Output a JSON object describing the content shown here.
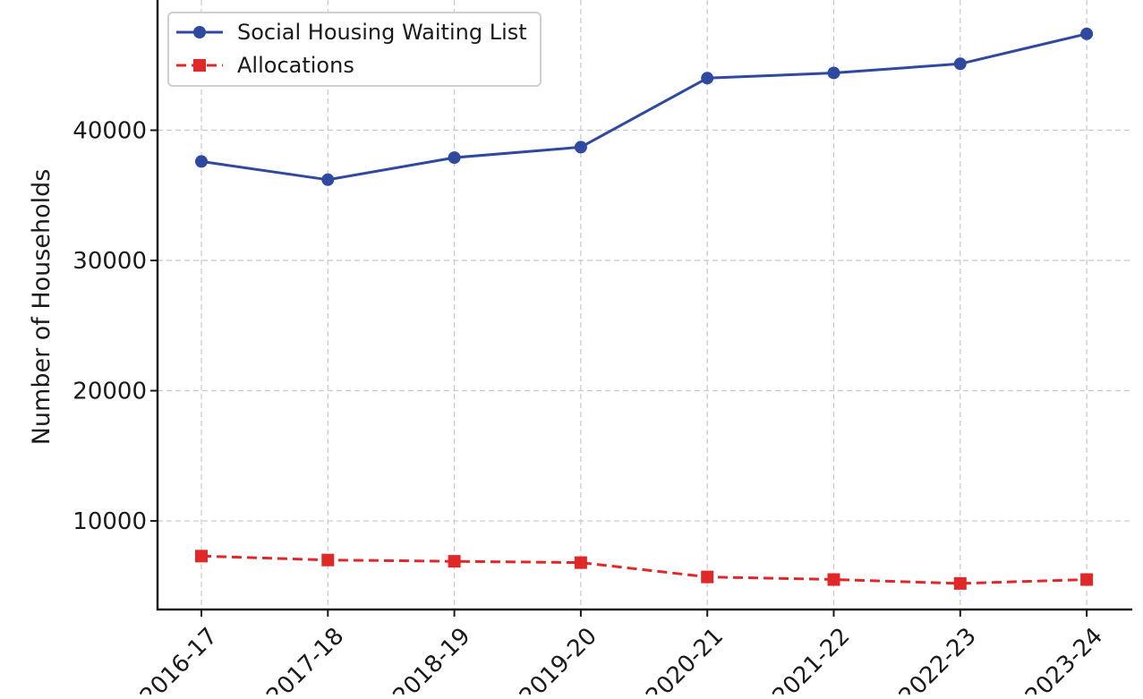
{
  "chart_data": {
    "type": "line",
    "title": "",
    "xlabel": "",
    "ylabel": "Number of Households",
    "categories": [
      "2016-17",
      "2017-18",
      "2018-19",
      "2019-20",
      "2020-21",
      "2021-22",
      "2022-23",
      "2023-24"
    ],
    "yticks": [
      10000,
      20000,
      30000,
      40000
    ],
    "ylim": [
      3200,
      50000
    ],
    "grid": true,
    "legend_position": "top-left",
    "series": [
      {
        "name": "Social Housing Waiting List",
        "color": "#2f48a0",
        "line_style": "solid",
        "marker": "circle",
        "values": [
          37600,
          36200,
          37900,
          38700,
          44000,
          44400,
          45100,
          47400
        ]
      },
      {
        "name": "Allocations",
        "color": "#e02828",
        "line_style": "dashed",
        "marker": "square",
        "values": [
          7300,
          7000,
          6900,
          6800,
          5700,
          5500,
          5200,
          5500
        ]
      }
    ]
  }
}
